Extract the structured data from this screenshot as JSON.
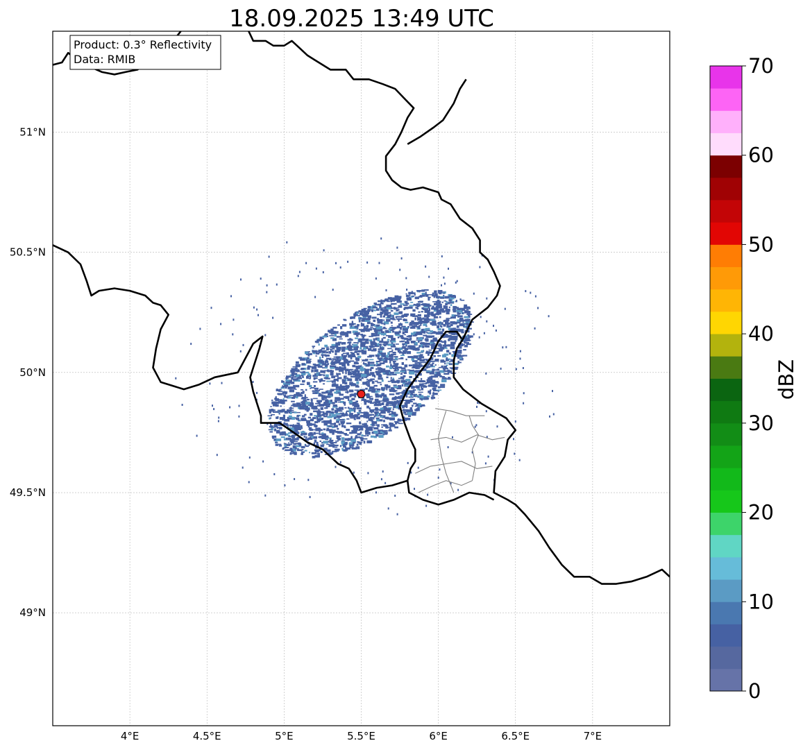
{
  "title": "18.09.2025 13:49 UTC",
  "info_box": {
    "product": "Product: 0.3° Reflectivity",
    "data": "Data: RMIB"
  },
  "map": {
    "lon_range": [
      3.5,
      7.5
    ],
    "lat_range": [
      48.53,
      51.42
    ],
    "radar_site": {
      "lon": 5.5,
      "lat": 49.91,
      "color": "#e8201c"
    },
    "lon_ticks": [
      {
        "value": 4.0,
        "label": "4°E"
      },
      {
        "value": 4.5,
        "label": "4.5°E"
      },
      {
        "value": 5.0,
        "label": "5°E"
      },
      {
        "value": 5.5,
        "label": "5.5°E"
      },
      {
        "value": 6.0,
        "label": "6°E"
      },
      {
        "value": 6.5,
        "label": "6.5°E"
      },
      {
        "value": 7.0,
        "label": "7°E"
      }
    ],
    "lat_ticks": [
      {
        "value": 49.0,
        "label": "49°N"
      },
      {
        "value": 49.5,
        "label": "49.5°N"
      },
      {
        "value": 50.0,
        "label": "50°N"
      },
      {
        "value": 50.5,
        "label": "50.5°N"
      },
      {
        "value": 51.0,
        "label": "51°N"
      }
    ],
    "echo_area": {
      "center_lon": 5.55,
      "center_lat": 50.0,
      "dominant_dbz": 5
    },
    "borders": [
      [
        [
          3.5,
          51.28
        ],
        [
          3.56,
          51.29
        ],
        [
          3.6,
          51.33
        ],
        [
          3.66,
          51.3
        ],
        [
          3.75,
          51.27
        ],
        [
          3.82,
          51.25
        ],
        [
          3.9,
          51.24
        ],
        [
          3.97,
          51.25
        ],
        [
          4.05,
          51.26
        ],
        [
          4.12,
          51.3
        ],
        [
          4.2,
          51.33
        ],
        [
          4.27,
          51.37
        ],
        [
          4.33,
          51.42
        ]
      ],
      [
        [
          4.77,
          51.42
        ],
        [
          4.8,
          51.38
        ],
        [
          4.88,
          51.38
        ],
        [
          4.93,
          51.36
        ],
        [
          5.0,
          51.36
        ],
        [
          5.05,
          51.38
        ],
        [
          5.1,
          51.35
        ],
        [
          5.15,
          51.32
        ],
        [
          5.2,
          51.3
        ],
        [
          5.3,
          51.26
        ],
        [
          5.4,
          51.26
        ],
        [
          5.45,
          51.22
        ],
        [
          5.55,
          51.22
        ],
        [
          5.64,
          51.2
        ],
        [
          5.72,
          51.18
        ],
        [
          5.78,
          51.14
        ],
        [
          5.84,
          51.1
        ],
        [
          5.8,
          51.06
        ],
        [
          5.76,
          51.0
        ],
        [
          5.72,
          50.95
        ],
        [
          5.66,
          50.9
        ],
        [
          5.66,
          50.84
        ],
        [
          5.7,
          50.8
        ],
        [
          5.76,
          50.77
        ],
        [
          5.82,
          50.76
        ],
        [
          5.9,
          50.77
        ],
        [
          6.0,
          50.75
        ],
        [
          6.02,
          50.72
        ],
        [
          6.08,
          50.7
        ],
        [
          6.14,
          50.64
        ],
        [
          6.22,
          50.6
        ],
        [
          6.27,
          50.55
        ],
        [
          6.27,
          50.5
        ],
        [
          6.32,
          50.47
        ],
        [
          6.36,
          50.42
        ],
        [
          6.4,
          50.36
        ],
        [
          6.38,
          50.32
        ],
        [
          6.32,
          50.27
        ],
        [
          6.22,
          50.22
        ],
        [
          6.16,
          50.14
        ],
        [
          6.12,
          50.1
        ],
        [
          6.1,
          50.05
        ],
        [
          6.1,
          49.98
        ],
        [
          6.16,
          49.93
        ],
        [
          6.28,
          49.87
        ],
        [
          6.44,
          49.81
        ],
        [
          6.5,
          49.76
        ],
        [
          6.45,
          49.72
        ],
        [
          6.43,
          49.65
        ],
        [
          6.37,
          49.59
        ],
        [
          6.36,
          49.5
        ],
        [
          6.45,
          49.47
        ],
        [
          6.5,
          49.45
        ],
        [
          6.56,
          49.41
        ],
        [
          6.65,
          49.34
        ],
        [
          6.72,
          49.27
        ],
        [
          6.8,
          49.2
        ],
        [
          6.88,
          49.15
        ],
        [
          6.98,
          49.15
        ],
        [
          7.06,
          49.12
        ],
        [
          7.15,
          49.12
        ],
        [
          7.25,
          49.13
        ],
        [
          7.35,
          49.15
        ],
        [
          7.45,
          49.18
        ],
        [
          7.5,
          49.15
        ]
      ],
      [
        [
          5.8,
          50.95
        ],
        [
          5.88,
          50.98
        ],
        [
          5.97,
          51.02
        ],
        [
          6.03,
          51.05
        ],
        [
          6.1,
          51.12
        ],
        [
          6.14,
          51.18
        ],
        [
          6.18,
          51.22
        ]
      ],
      [
        [
          3.5,
          50.53
        ],
        [
          3.6,
          50.5
        ],
        [
          3.68,
          50.45
        ],
        [
          3.72,
          50.38
        ],
        [
          3.75,
          50.32
        ],
        [
          3.8,
          50.34
        ],
        [
          3.9,
          50.35
        ],
        [
          4.0,
          50.34
        ],
        [
          4.1,
          50.32
        ],
        [
          4.15,
          50.29
        ],
        [
          4.2,
          50.28
        ],
        [
          4.25,
          50.24
        ],
        [
          4.2,
          50.18
        ],
        [
          4.17,
          50.1
        ],
        [
          4.15,
          50.02
        ],
        [
          4.2,
          49.96
        ],
        [
          4.35,
          49.93
        ],
        [
          4.45,
          49.95
        ],
        [
          4.55,
          49.98
        ],
        [
          4.7,
          50.0
        ],
        [
          4.8,
          50.12
        ],
        [
          4.86,
          50.15
        ],
        [
          4.84,
          50.1
        ],
        [
          4.8,
          50.02
        ],
        [
          4.78,
          49.98
        ],
        [
          4.8,
          49.92
        ],
        [
          4.85,
          49.82
        ],
        [
          4.85,
          49.79
        ],
        [
          4.97,
          49.79
        ],
        [
          5.04,
          49.76
        ],
        [
          5.15,
          49.71
        ],
        [
          5.25,
          49.68
        ],
        [
          5.3,
          49.65
        ],
        [
          5.35,
          49.62
        ],
        [
          5.42,
          49.6
        ],
        [
          5.47,
          49.55
        ],
        [
          5.5,
          49.5
        ],
        [
          5.6,
          49.52
        ],
        [
          5.7,
          49.53
        ],
        [
          5.8,
          49.55
        ],
        [
          5.81,
          49.5
        ],
        [
          5.9,
          49.47
        ],
        [
          6.0,
          49.45
        ],
        [
          6.1,
          49.47
        ],
        [
          6.2,
          49.5
        ],
        [
          6.3,
          49.49
        ],
        [
          6.36,
          49.47
        ]
      ],
      [
        [
          5.8,
          49.55
        ],
        [
          5.82,
          49.6
        ],
        [
          5.85,
          49.63
        ],
        [
          5.85,
          49.68
        ],
        [
          5.82,
          49.72
        ],
        [
          5.78,
          49.79
        ],
        [
          5.75,
          49.86
        ],
        [
          5.8,
          49.93
        ],
        [
          5.88,
          50.0
        ],
        [
          5.95,
          50.06
        ],
        [
          6.0,
          50.13
        ],
        [
          6.05,
          50.17
        ],
        [
          6.12,
          50.17
        ],
        [
          6.15,
          50.14
        ]
      ]
    ],
    "regions": [
      [
        [
          5.98,
          49.85
        ],
        [
          6.08,
          49.84
        ],
        [
          6.18,
          49.82
        ],
        [
          6.3,
          49.82
        ]
      ],
      [
        [
          5.95,
          49.72
        ],
        [
          6.05,
          49.73
        ],
        [
          6.15,
          49.71
        ],
        [
          6.25,
          49.74
        ],
        [
          6.35,
          49.72
        ],
        [
          6.43,
          49.73
        ]
      ],
      [
        [
          6.05,
          49.84
        ],
        [
          6.02,
          49.78
        ],
        [
          6.0,
          49.73
        ],
        [
          6.02,
          49.65
        ],
        [
          6.05,
          49.58
        ],
        [
          6.1,
          49.5
        ]
      ],
      [
        [
          6.2,
          49.82
        ],
        [
          6.22,
          49.78
        ],
        [
          6.26,
          49.74
        ],
        [
          6.22,
          49.68
        ],
        [
          6.24,
          49.62
        ],
        [
          6.22,
          49.55
        ]
      ],
      [
        [
          5.85,
          49.58
        ],
        [
          5.95,
          49.61
        ],
        [
          6.05,
          49.62
        ],
        [
          6.15,
          49.63
        ],
        [
          6.25,
          49.6
        ],
        [
          6.35,
          49.61
        ]
      ],
      [
        [
          5.87,
          49.5
        ],
        [
          5.97,
          49.53
        ],
        [
          6.05,
          49.55
        ],
        [
          6.15,
          49.53
        ],
        [
          6.22,
          49.55
        ]
      ]
    ]
  },
  "colorbar": {
    "label": "dBZ",
    "min": 0,
    "max": 70,
    "tick_values": [
      0,
      10,
      20,
      30,
      40,
      50,
      60,
      70
    ],
    "tick_labels": [
      "0",
      "10",
      "20",
      "30",
      "40",
      "50",
      "60",
      "70"
    ],
    "colors": [
      "#6673a8",
      "#56689f",
      "#4661a3",
      "#4a78b0",
      "#5b9bc4",
      "#66bcd9",
      "#60d6c4",
      "#3dd46a",
      "#16c71a",
      "#12b91a",
      "#13a417",
      "#128d16",
      "#0f7a12",
      "#0b6511",
      "#4a7a12",
      "#b3b30d",
      "#ffd602",
      "#ffb505",
      "#ff9a07",
      "#ff7d04",
      "#e20604",
      "#c30506",
      "#a00204",
      "#7c0001",
      "#ffdcfc",
      "#ffb0fb",
      "#fd64f5",
      "#e834ea"
    ]
  }
}
